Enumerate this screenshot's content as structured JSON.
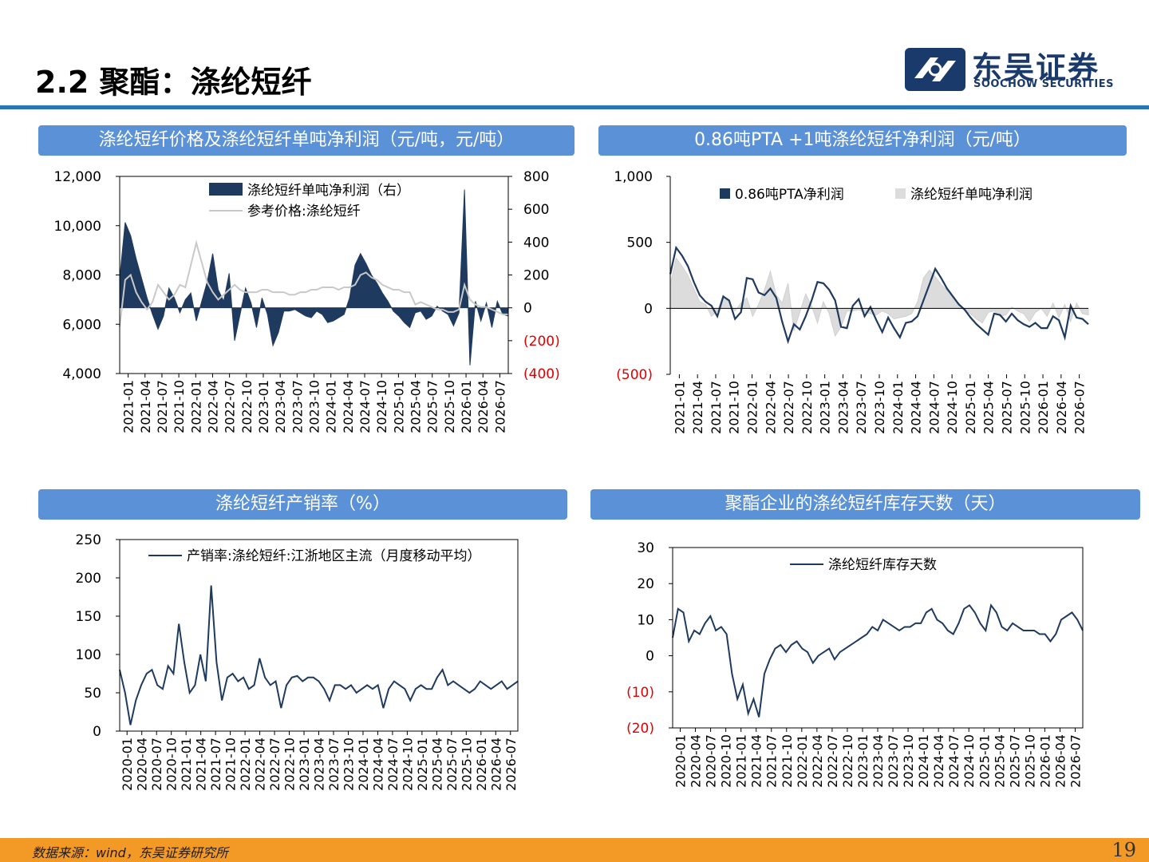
{
  "page": {
    "title": "2.2 聚酯：涤纶短纤",
    "logo_cn": "东吴证券",
    "logo_en": "SOOCHOW SECURITIES",
    "source": "数据来源：wind，东吴证券研究所",
    "page_number": "19"
  },
  "colors": {
    "navy": "#1f3a5f",
    "grey": "#c9c9c9",
    "panel": "#5b91d6",
    "accent": "#2a75b8",
    "footer": "#f39a26",
    "negative": "#e00000"
  },
  "panels": [
    {
      "title": "涤纶短纤价格及涤纶短纤单吨净利润（元/吨，元/吨）"
    },
    {
      "title": "0.86吨PTA +1吨涤纶短纤净利润（元/吨）"
    },
    {
      "title": "涤纶短纤产销率（%）"
    },
    {
      "title": "聚酯企业的涤纶短纤库存天数（天）"
    }
  ],
  "chart_data": [
    {
      "type": "area",
      "title": "涤纶短纤价格及涤纶短纤单吨净利润（元/吨，元/吨）",
      "left_axis": {
        "ticks": [
          "12,000",
          "10,000",
          "8,000",
          "6,000",
          "4,000"
        ],
        "ylim": [
          4000,
          12000
        ]
      },
      "right_axis": {
        "ticks": [
          "800",
          "600",
          "400",
          "200",
          "0",
          "(200)",
          "(400)"
        ],
        "ylim": [
          -400,
          800
        ]
      },
      "x_ticks": [
        "2021-01",
        "2021-04",
        "2021-07",
        "2021-10",
        "2022-01",
        "2022-04",
        "2022-07",
        "2022-10",
        "2023-01",
        "2023-04",
        "2023-07",
        "2023-10",
        "2024-01",
        "2024-04",
        "2024-07",
        "2024-10",
        "2025-01",
        "2025-04",
        "2025-07",
        "2025-10",
        "2026-01",
        "2026-04",
        "2026-07"
      ],
      "legend": {
        "position": "top-left"
      },
      "series": [
        {
          "name": "涤纶短纤单吨净利润（右）",
          "kind": "area",
          "axis": "right",
          "values": [
            180,
            520,
            440,
            300,
            180,
            60,
            -40,
            -130,
            -50,
            120,
            60,
            -30,
            50,
            90,
            -80,
            40,
            160,
            330,
            110,
            40,
            210,
            -200,
            -40,
            120,
            30,
            -120,
            60,
            -40,
            -230,
            -150,
            -20,
            -20,
            -10,
            -30,
            -50,
            -60,
            -20,
            -40,
            -90,
            -80,
            -60,
            -40,
            60,
            260,
            330,
            270,
            200,
            150,
            90,
            40,
            -20,
            -50,
            -90,
            -120,
            -30,
            -20,
            -70,
            -50,
            10,
            -20,
            -40,
            -110,
            -30,
            720,
            -350,
            40,
            -80,
            30,
            -120,
            40,
            -40,
            -50
          ]
        },
        {
          "name": "参考价格:涤纶短纤",
          "kind": "line",
          "axis": "left",
          "values": [
            5900,
            7800,
            8000,
            7300,
            6900,
            6600,
            6900,
            7600,
            7300,
            7000,
            7200,
            7600,
            7500,
            8400,
            9300,
            8500,
            7700,
            7300,
            7000,
            7200,
            7400,
            7600,
            7400,
            7300,
            7300,
            7300,
            7400,
            7400,
            7300,
            7300,
            7300,
            7200,
            7200,
            7300,
            7300,
            7400,
            7400,
            7500,
            7500,
            7500,
            7400,
            7500,
            7500,
            7600,
            8000,
            8100,
            7900,
            7800,
            7600,
            7500,
            7400,
            7400,
            7300,
            7300,
            6800,
            6900,
            6800,
            6700,
            6600,
            6600,
            6500,
            6500,
            6600,
            7600,
            7000,
            6800,
            6700,
            6700,
            6600,
            6500,
            6400,
            6400
          ]
        }
      ]
    },
    {
      "type": "area",
      "title": "0.86吨PTA +1吨涤纶短纤净利润（元/吨）",
      "y_ticks": [
        "1,000",
        "500",
        "0",
        "(500)"
      ],
      "ylim": [
        -500,
        1000
      ],
      "x_ticks": [
        "2021-01",
        "2021-04",
        "2021-07",
        "2021-10",
        "2022-01",
        "2022-04",
        "2022-07",
        "2022-10",
        "2023-01",
        "2023-04",
        "2023-07",
        "2023-10",
        "2024-01",
        "2024-04",
        "2024-07",
        "2024-10",
        "2025-01",
        "2025-04",
        "2025-07",
        "2025-10",
        "2026-01",
        "2026-04",
        "2026-07"
      ],
      "legend": {
        "position": "top"
      },
      "series": [
        {
          "name": "0.86吨PTA净利润",
          "kind": "area",
          "values": [
            260,
            460,
            400,
            320,
            200,
            100,
            50,
            20,
            -60,
            90,
            60,
            -80,
            -30,
            230,
            220,
            120,
            100,
            150,
            80,
            -100,
            -250,
            -120,
            -160,
            -60,
            60,
            200,
            190,
            140,
            60,
            -140,
            -150,
            20,
            70,
            -60,
            10,
            -90,
            -180,
            -70,
            -150,
            -220,
            -110,
            -100,
            -60,
            60,
            180,
            300,
            230,
            150,
            90,
            30,
            -10,
            -70,
            -120,
            -160,
            -200,
            -40,
            -50,
            -100,
            -40,
            -90,
            -120,
            -140,
            -110,
            -150,
            -150,
            -60,
            -90,
            -220,
            20,
            -70,
            -80,
            -120
          ]
        },
        {
          "name": "涤纶短纤单吨净利润",
          "kind": "area",
          "values": [
            180,
            380,
            320,
            250,
            150,
            50,
            30,
            -60,
            -20,
            100,
            40,
            -20,
            40,
            80,
            -60,
            30,
            140,
            280,
            100,
            40,
            190,
            -170,
            -30,
            110,
            20,
            -110,
            50,
            -40,
            -210,
            -140,
            -20,
            -20,
            -10,
            -30,
            -40,
            -50,
            -20,
            -40,
            -80,
            -70,
            -60,
            -40,
            50,
            230,
            290,
            240,
            180,
            140,
            80,
            40,
            -20,
            -40,
            -80,
            -110,
            -30,
            -20,
            -60,
            -50,
            10,
            -20,
            -40,
            -100,
            -30,
            0,
            -60,
            40,
            -70,
            30,
            -100,
            40,
            -40,
            -50
          ]
        }
      ]
    },
    {
      "type": "line",
      "title": "涤纶短纤产销率（%）",
      "y_ticks": [
        "250",
        "200",
        "150",
        "100",
        "50",
        "0"
      ],
      "ylim": [
        0,
        250
      ],
      "x_ticks": [
        "2020-01",
        "2020-04",
        "2020-07",
        "2020-10",
        "2021-01",
        "2021-04",
        "2021-07",
        "2021-10",
        "2022-01",
        "2022-04",
        "2022-07",
        "2022-10",
        "2023-01",
        "2023-04",
        "2023-07",
        "2023-10",
        "2024-01",
        "2024-04",
        "2024-07",
        "2024-10",
        "2025-01",
        "2025-04",
        "2025-07",
        "2025-10",
        "2026-01",
        "2026-04",
        "2026-07"
      ],
      "legend": {
        "position": "top"
      },
      "series": [
        {
          "name": "产销率:涤纶短纤:江浙地区主流（月度移动平均）",
          "values": [
            80,
            50,
            8,
            40,
            60,
            75,
            80,
            60,
            55,
            85,
            75,
            140,
            90,
            50,
            60,
            100,
            65,
            190,
            90,
            40,
            70,
            75,
            65,
            70,
            55,
            60,
            95,
            70,
            60,
            65,
            30,
            60,
            70,
            72,
            65,
            70,
            70,
            65,
            55,
            40,
            60,
            60,
            55,
            60,
            50,
            55,
            60,
            55,
            60,
            30,
            55,
            65,
            60,
            55,
            40,
            55,
            60,
            55,
            55,
            70,
            80,
            60,
            65,
            60,
            55,
            50,
            55,
            65,
            60,
            55,
            60,
            65,
            55,
            60,
            65
          ]
        }
      ]
    },
    {
      "type": "line",
      "title": "聚酯企业的涤纶短纤库存天数（天）",
      "y_ticks": [
        "30",
        "20",
        "10",
        "0",
        "(10)",
        "(20)"
      ],
      "ylim": [
        -20,
        30
      ],
      "x_ticks": [
        "2020-01",
        "2020-04",
        "2020-07",
        "2020-10",
        "2021-01",
        "2021-04",
        "2021-07",
        "2021-10",
        "2022-01",
        "2022-04",
        "2022-07",
        "2022-10",
        "2023-01",
        "2023-04",
        "2023-07",
        "2023-10",
        "2024-01",
        "2024-04",
        "2024-07",
        "2024-10",
        "2025-01",
        "2025-04",
        "2025-07",
        "2025-10",
        "2026-01",
        "2026-04",
        "2026-07"
      ],
      "legend": {
        "position": "top"
      },
      "series": [
        {
          "name": "涤纶短纤库存天数",
          "values": [
            5,
            13,
            12,
            4,
            7,
            6,
            9,
            11,
            7,
            8,
            6,
            -5,
            -12,
            -8,
            -16,
            -12,
            -17,
            -5,
            -1,
            2,
            3,
            1,
            3,
            4,
            2,
            1,
            -2,
            0,
            1,
            2,
            -1,
            1,
            2,
            3,
            4,
            5,
            6,
            8,
            7,
            10,
            9,
            8,
            7,
            8,
            8,
            9,
            9,
            12,
            13,
            10,
            9,
            7,
            6,
            9,
            13,
            14,
            12,
            9,
            7,
            14,
            12,
            8,
            7,
            9,
            8,
            7,
            7,
            7,
            6,
            6,
            4,
            6,
            10,
            11,
            12,
            10,
            7
          ]
        }
      ]
    }
  ]
}
